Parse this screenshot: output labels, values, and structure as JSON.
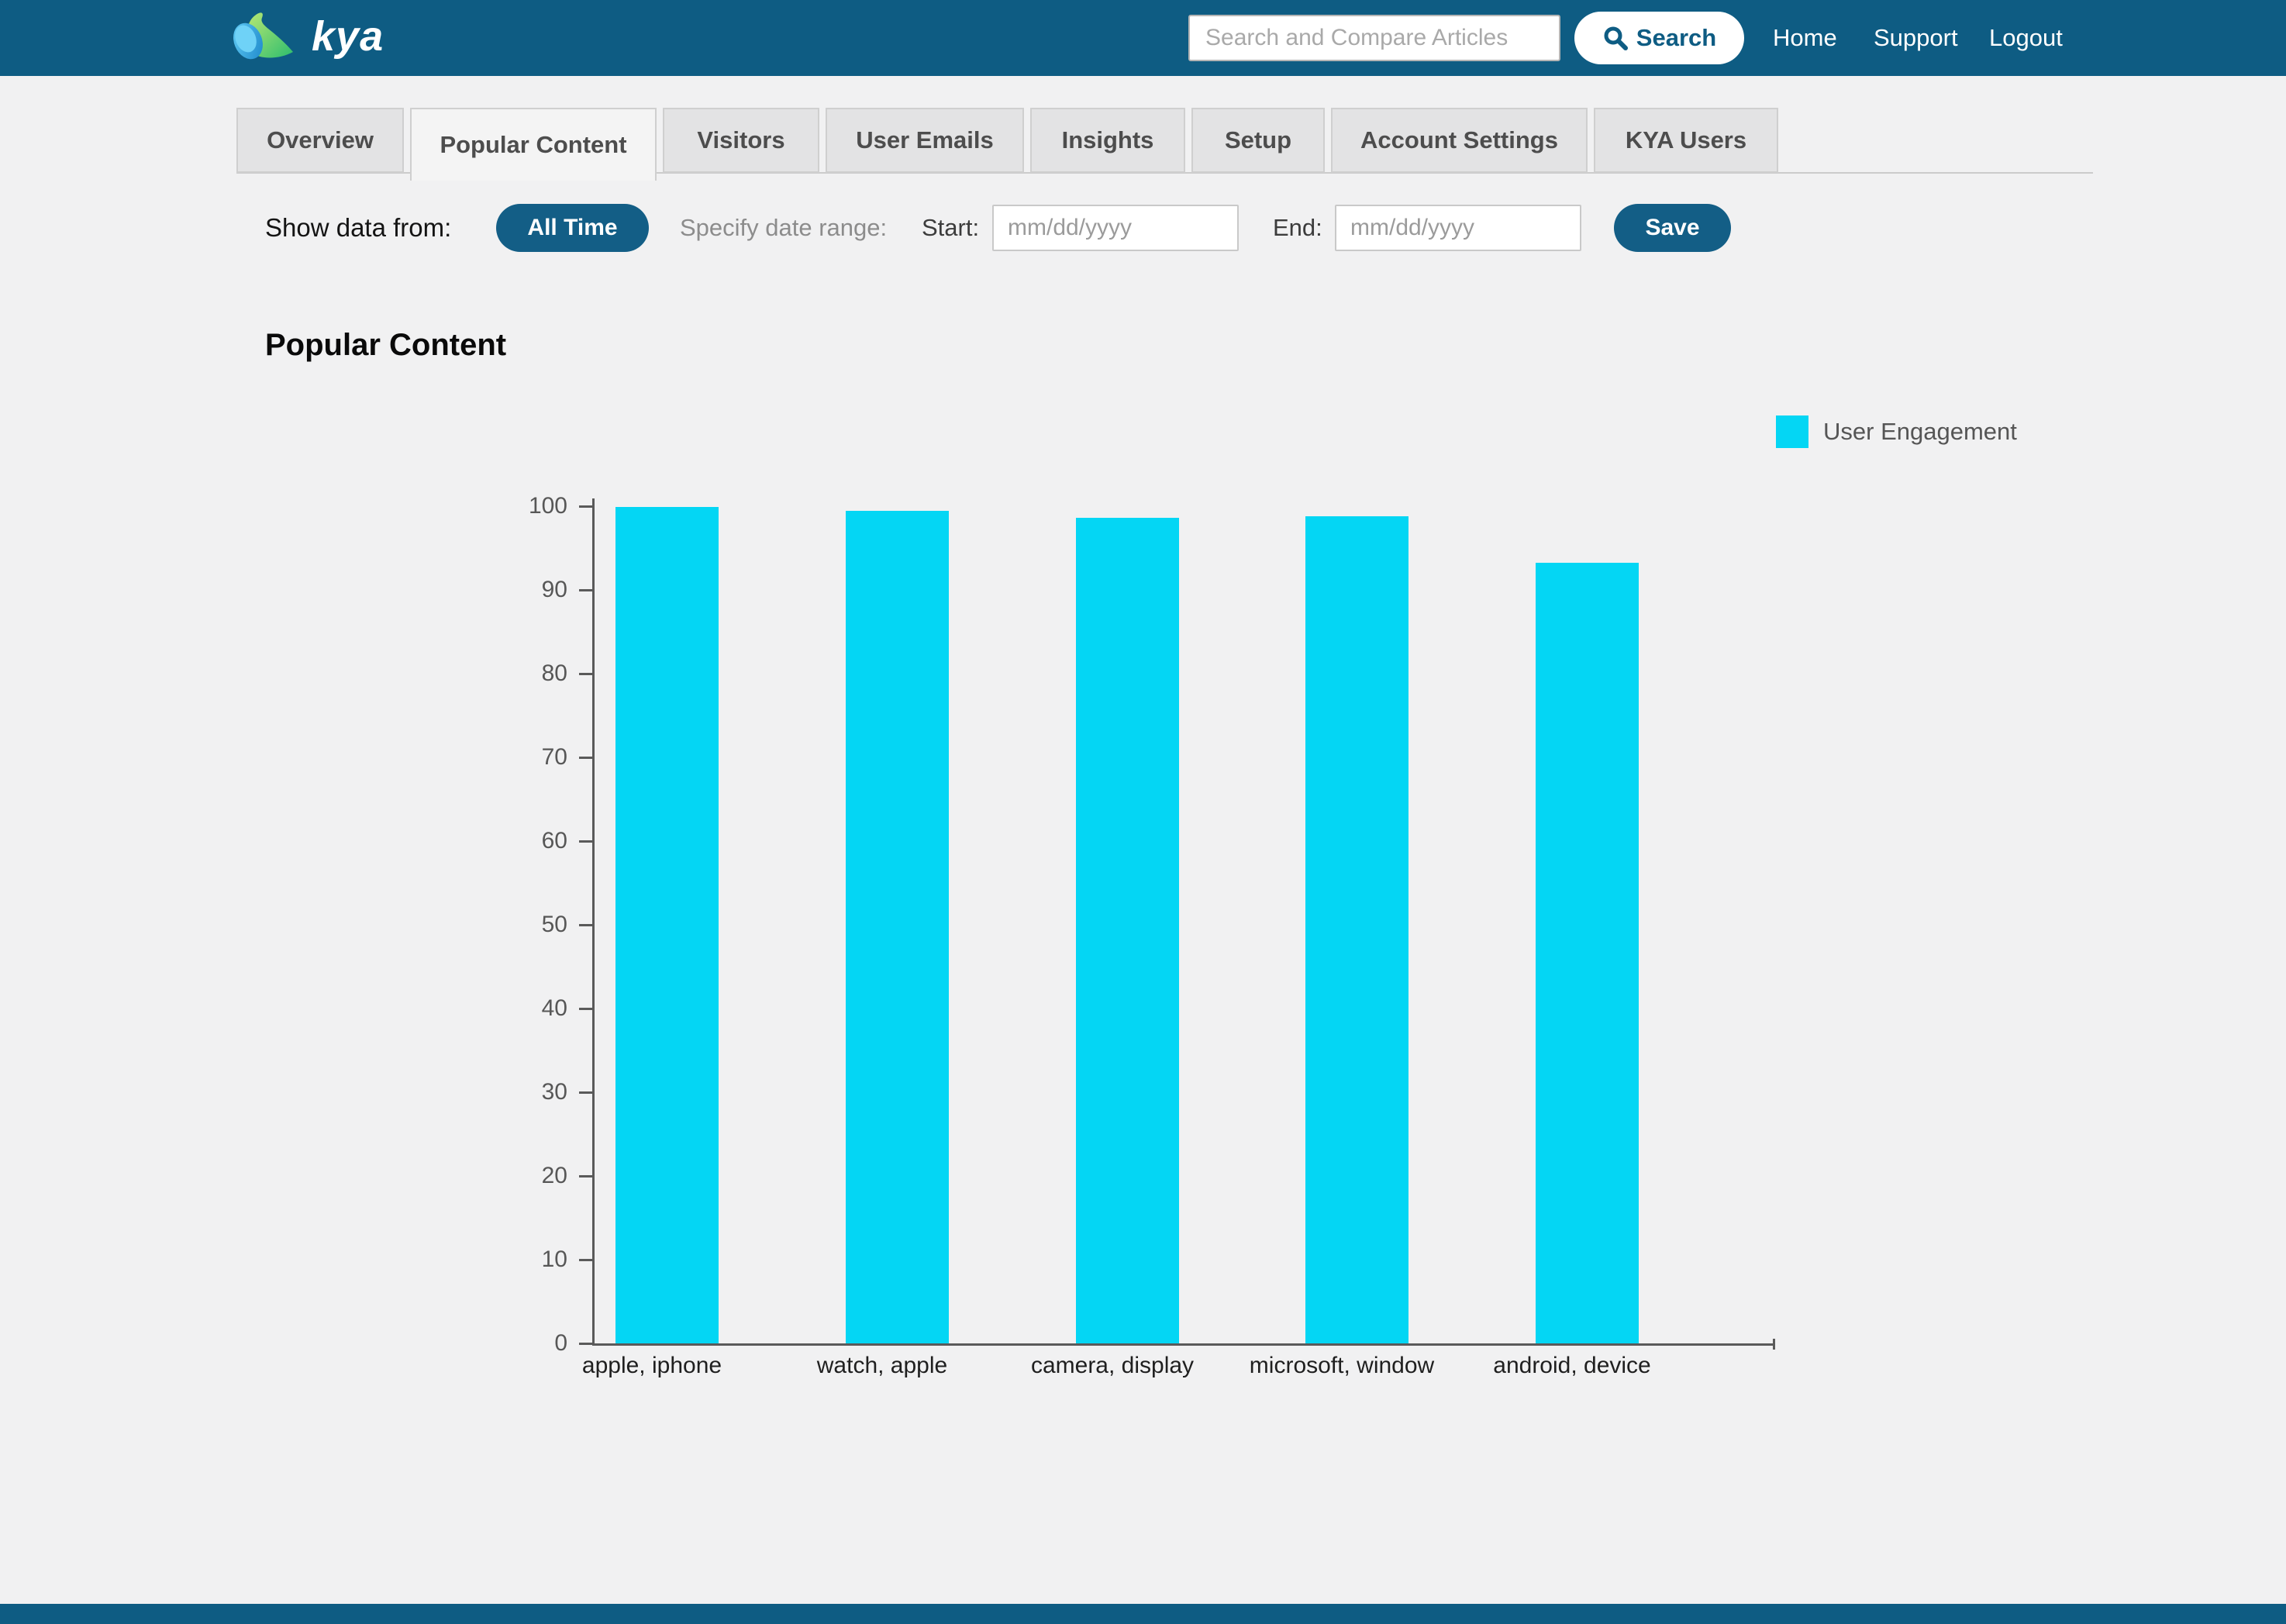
{
  "navbar": {
    "logo_text": "kya",
    "search": {
      "placeholder": "Search and Compare Articles",
      "value": "",
      "button_label": "Search"
    },
    "links": [
      {
        "label": "Home"
      },
      {
        "label": "Support"
      },
      {
        "label": "Logout"
      }
    ]
  },
  "tabs": [
    {
      "label": "Overview",
      "active": false
    },
    {
      "label": "Popular Content",
      "active": true
    },
    {
      "label": "Visitors",
      "active": false
    },
    {
      "label": "User Emails",
      "active": false
    },
    {
      "label": "Insights",
      "active": false
    },
    {
      "label": "Setup",
      "active": false
    },
    {
      "label": "Account Settings",
      "active": false
    },
    {
      "label": "KYA Users",
      "active": false
    }
  ],
  "filters": {
    "show_data_label": "Show data from:",
    "all_time_button": "All Time",
    "range_label": "Specify date range:",
    "start_label": "Start:",
    "start_value": "",
    "start_placeholder": "mm/dd/yyyy",
    "end_label": "End:",
    "end_value": "",
    "end_placeholder": "mm/dd/yyyy",
    "save_button": "Save"
  },
  "page_title": "Popular Content",
  "chart_data": {
    "type": "bar",
    "title": "Popular Content",
    "categories": [
      "apple, iphone",
      "watch, apple",
      "camera, display",
      "microsoft, window",
      "android, device"
    ],
    "series": [
      {
        "name": "User Engagement",
        "values": [
          99.9,
          99.4,
          98.6,
          98.8,
          93.2
        ]
      }
    ],
    "ylim": [
      0,
      100
    ],
    "ytick_step": 10,
    "grid": false,
    "legend_position": "top-right",
    "bar_color": "#04d6f4"
  },
  "colors": {
    "navbar_bg": "#0e5c83",
    "button_bg": "#135e86",
    "bar_fill": "#04d6f4",
    "page_bg": "#f1f1f2",
    "tab_inactive_bg": "#e3e3e4",
    "axis_color": "#5a5a5a",
    "legend_text": "#555555"
  }
}
